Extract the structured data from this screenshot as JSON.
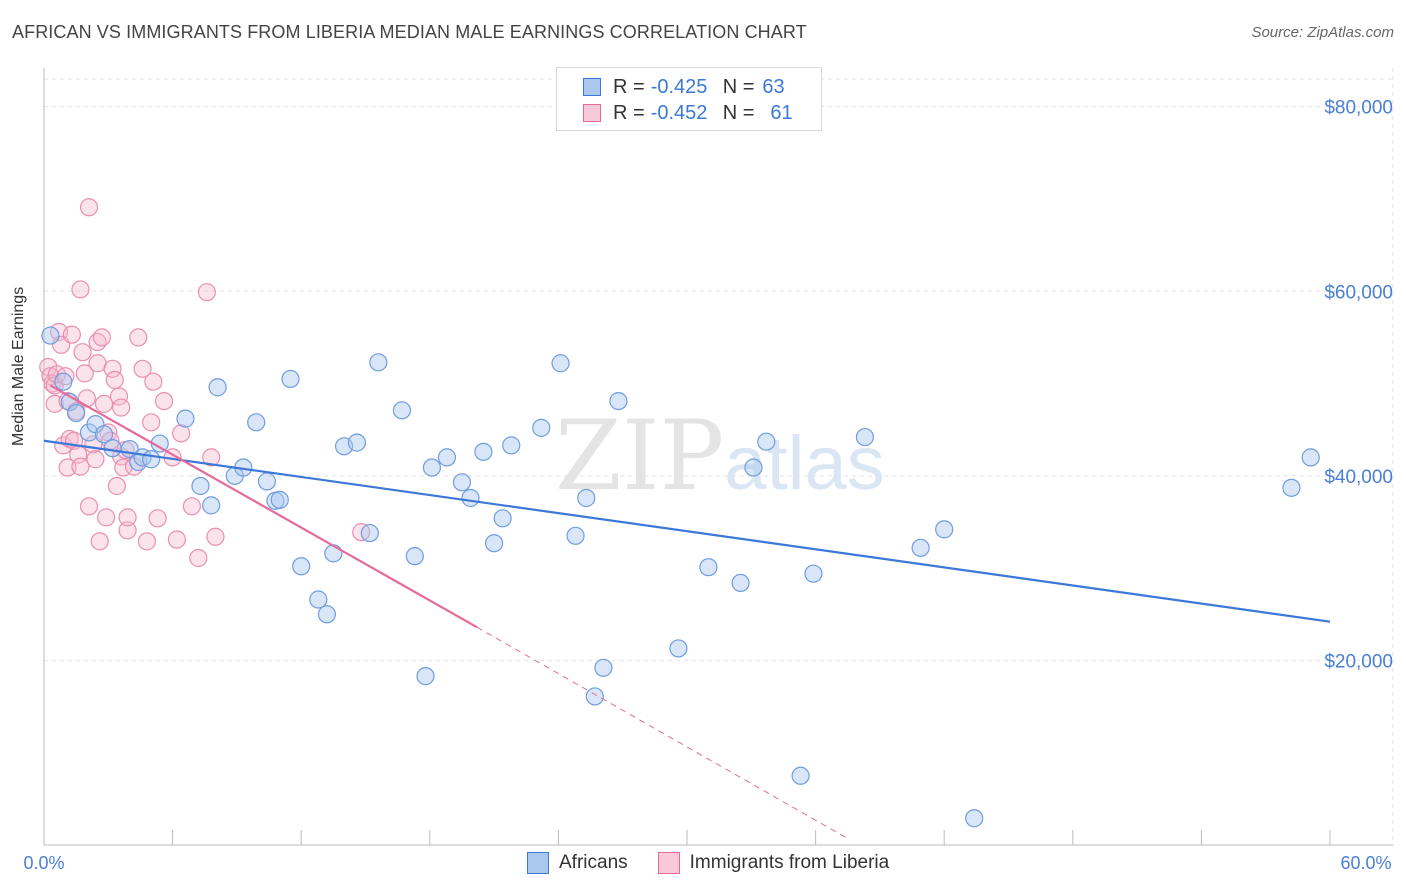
{
  "title": "AFRICAN VS IMMIGRANTS FROM LIBERIA MEDIAN MALE EARNINGS CORRELATION CHART",
  "source": "Source: ZipAtlas.com",
  "watermark": {
    "zip": "ZIP",
    "atlas": "atlas"
  },
  "legend": {
    "rows": [
      {
        "r_label": "R =",
        "r_value": "-0.425",
        "n_label": "N =",
        "n_value": "63"
      },
      {
        "r_label": "R =",
        "r_value": "-0.452",
        "n_label": "N =",
        "n_value": "61"
      }
    ]
  },
  "bottom_legend": {
    "africans": "Africans",
    "liberia": "Immigrants from Liberia"
  },
  "colors": {
    "blue": "#3b78d8",
    "blue_fill": "#aac7ef",
    "pink": "#e46b9a",
    "pink_fill": "#f5b8cc"
  },
  "chart_data": {
    "type": "scatter",
    "title": "AFRICAN VS IMMIGRANTS FROM LIBERIA MEDIAN MALE EARNINGS CORRELATION CHART",
    "xlabel": "",
    "ylabel": "Median Male Earnings",
    "xlim": [
      0,
      60
    ],
    "ylim": [
      0,
      83000
    ],
    "x_tick_labels": [
      "0.0%",
      "60.0%"
    ],
    "y_ticks": [
      20000,
      40000,
      60000,
      80000
    ],
    "y_tick_labels": [
      "$20,000",
      "$40,000",
      "$60,000",
      "$80,000"
    ],
    "series": [
      {
        "name": "Africans",
        "points": [
          [
            0.3,
            55200
          ],
          [
            0.9,
            50200
          ],
          [
            1.2,
            48000
          ],
          [
            1.5,
            46800
          ],
          [
            2.1,
            44700
          ],
          [
            2.4,
            45600
          ],
          [
            2.8,
            44500
          ],
          [
            3.2,
            43000
          ],
          [
            4.0,
            42900
          ],
          [
            4.4,
            41500
          ],
          [
            4.6,
            42000
          ],
          [
            5.0,
            41800
          ],
          [
            5.4,
            43500
          ],
          [
            6.6,
            46200
          ],
          [
            7.3,
            38900
          ],
          [
            7.8,
            36800
          ],
          [
            8.1,
            49600
          ],
          [
            8.9,
            40000
          ],
          [
            9.3,
            40900
          ],
          [
            9.9,
            45800
          ],
          [
            10.4,
            39400
          ],
          [
            10.8,
            37300
          ],
          [
            11.0,
            37400
          ],
          [
            11.5,
            50500
          ],
          [
            12.0,
            30200
          ],
          [
            12.8,
            26600
          ],
          [
            13.2,
            25000
          ],
          [
            13.5,
            31600
          ],
          [
            14.0,
            43200
          ],
          [
            14.6,
            43600
          ],
          [
            15.2,
            33800
          ],
          [
            15.6,
            52300
          ],
          [
            16.7,
            47100
          ],
          [
            17.3,
            31300
          ],
          [
            17.8,
            18300
          ],
          [
            18.1,
            40900
          ],
          [
            18.8,
            42000
          ],
          [
            19.5,
            39300
          ],
          [
            19.9,
            37600
          ],
          [
            20.5,
            42600
          ],
          [
            21.0,
            32700
          ],
          [
            21.4,
            35400
          ],
          [
            21.8,
            43300
          ],
          [
            23.2,
            45200
          ],
          [
            24.1,
            52200
          ],
          [
            24.8,
            33500
          ],
          [
            25.3,
            37600
          ],
          [
            25.7,
            16100
          ],
          [
            26.1,
            19200
          ],
          [
            26.8,
            48100
          ],
          [
            29.6,
            21300
          ],
          [
            31.0,
            30100
          ],
          [
            32.5,
            28400
          ],
          [
            33.1,
            40900
          ],
          [
            33.7,
            43700
          ],
          [
            35.3,
            7500
          ],
          [
            35.9,
            29400
          ],
          [
            38.3,
            44200
          ],
          [
            40.9,
            32200
          ],
          [
            42.0,
            34200
          ],
          [
            43.4,
            2900
          ],
          [
            58.2,
            38700
          ],
          [
            59.1,
            42000
          ]
        ]
      },
      {
        "name": "Immigrants from Liberia",
        "points": [
          [
            0.2,
            51800
          ],
          [
            0.3,
            50800
          ],
          [
            0.4,
            50000
          ],
          [
            0.5,
            47800
          ],
          [
            0.5,
            49800
          ],
          [
            0.6,
            51000
          ],
          [
            0.7,
            55600
          ],
          [
            0.8,
            54200
          ],
          [
            0.9,
            43300
          ],
          [
            1.0,
            50800
          ],
          [
            1.1,
            48100
          ],
          [
            1.1,
            40900
          ],
          [
            1.2,
            44000
          ],
          [
            1.3,
            55300
          ],
          [
            1.4,
            43800
          ],
          [
            1.5,
            47000
          ],
          [
            1.6,
            42300
          ],
          [
            1.7,
            41000
          ],
          [
            1.7,
            60200
          ],
          [
            1.8,
            53400
          ],
          [
            1.9,
            51100
          ],
          [
            2.0,
            48400
          ],
          [
            2.1,
            36700
          ],
          [
            2.1,
            69100
          ],
          [
            2.3,
            43400
          ],
          [
            2.4,
            41800
          ],
          [
            2.5,
            52200
          ],
          [
            2.5,
            54500
          ],
          [
            2.6,
            32900
          ],
          [
            2.7,
            55000
          ],
          [
            2.8,
            47800
          ],
          [
            2.9,
            35500
          ],
          [
            3.0,
            44700
          ],
          [
            3.1,
            43800
          ],
          [
            3.2,
            51600
          ],
          [
            3.3,
            50400
          ],
          [
            3.4,
            38900
          ],
          [
            3.5,
            48600
          ],
          [
            3.6,
            42100
          ],
          [
            3.6,
            47400
          ],
          [
            3.7,
            40900
          ],
          [
            3.8,
            42800
          ],
          [
            3.9,
            34100
          ],
          [
            4.2,
            41000
          ],
          [
            4.4,
            55000
          ],
          [
            4.6,
            51600
          ],
          [
            4.8,
            32900
          ],
          [
            5.0,
            45800
          ],
          [
            5.1,
            50200
          ],
          [
            5.3,
            35400
          ],
          [
            5.6,
            48100
          ],
          [
            6.0,
            42000
          ],
          [
            6.2,
            33100
          ],
          [
            6.4,
            44600
          ],
          [
            6.9,
            36700
          ],
          [
            7.2,
            31100
          ],
          [
            7.6,
            59900
          ],
          [
            7.8,
            42000
          ],
          [
            8.0,
            33400
          ],
          [
            14.8,
            33900
          ],
          [
            3.9,
            35500
          ]
        ]
      }
    ],
    "trend_lines": [
      {
        "series": "Africans",
        "x": [
          0,
          60
        ],
        "y": [
          43800,
          24200
        ],
        "style": "solid"
      },
      {
        "series": "Immigrants from Liberia",
        "x": [
          0.3,
          20.2
        ],
        "y": [
          49800,
          23600
        ],
        "style": "solid"
      },
      {
        "series": "Immigrants from Liberia",
        "x": [
          20.2,
          37.5
        ],
        "y": [
          23600,
          700
        ],
        "style": "dashed"
      }
    ]
  }
}
